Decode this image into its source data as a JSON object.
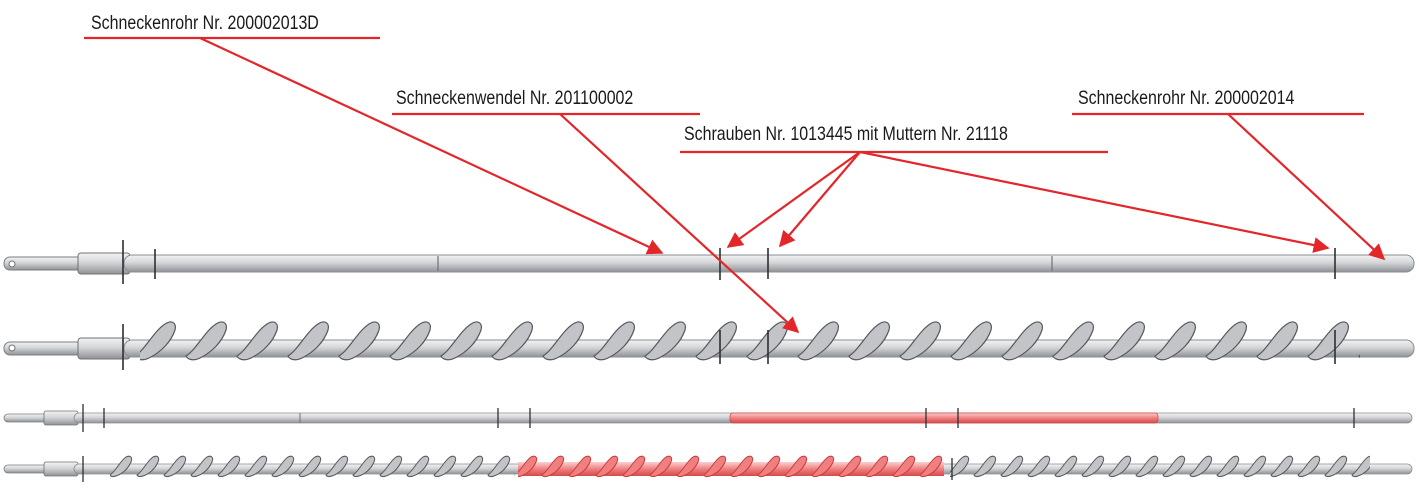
{
  "labels": {
    "tube_a": "Schneckenrohr Nr. 200002013D",
    "flight": "Schneckenwendel Nr. 201100002",
    "screws": "Schrauben Nr. 1013445  mit Muttern Nr. 21118",
    "tube_b": "Schneckenrohr Nr. 200002014"
  },
  "colors": {
    "accent": "#e3262a",
    "tube": "#c9cbcd",
    "tube_dark": "#8e9195",
    "highlight": "#f06a6a"
  },
  "icons": [
    "arrowhead-icon"
  ]
}
